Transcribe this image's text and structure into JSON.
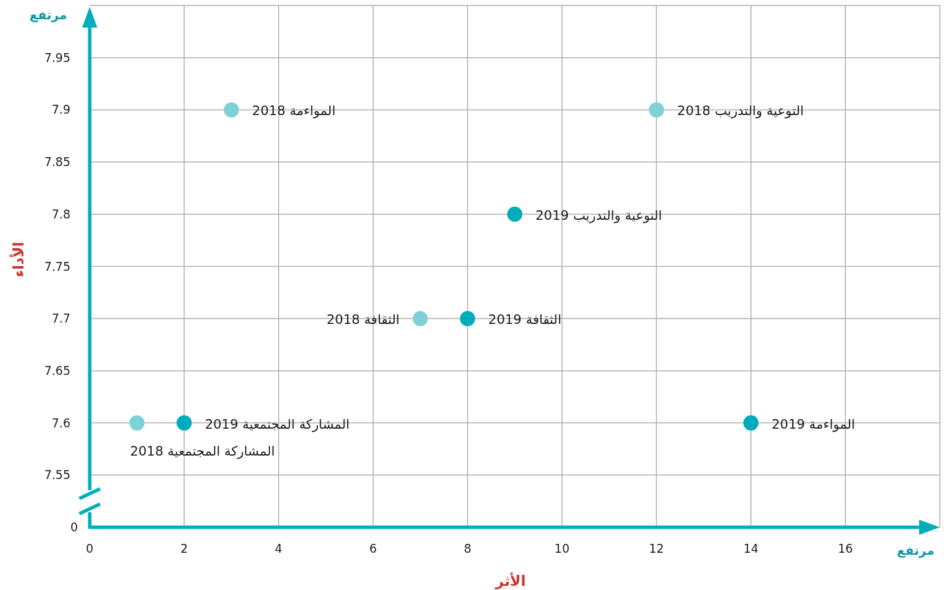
{
  "chart_data": {
    "type": "scatter",
    "xlabel": "الأثر",
    "ylabel": "الأداء",
    "xlim": [
      0,
      18
    ],
    "xticks": [
      0,
      2,
      4,
      6,
      8,
      10,
      12,
      14,
      16,
      {
        "value": 18,
        "label": null
      }
    ],
    "ylim": [
      7.5,
      8.0
    ],
    "yticks": [
      7.55,
      7.6,
      7.65,
      7.7,
      7.75,
      7.8,
      7.85,
      7.9,
      7.95,
      {
        "value": 8.0,
        "label": null
      }
    ],
    "grid": true,
    "marker": "circle",
    "series": [
      {
        "color": "#7fd1d9",
        "x": [
          1,
          3,
          7,
          12
        ],
        "values": [
          7.6,
          7.9,
          7.7,
          7.9
        ]
      },
      {
        "color": "#00abbb",
        "x": [
          2,
          8,
          9,
          14
        ],
        "values": [
          7.6,
          7.7,
          7.8,
          7.6
        ]
      }
    ],
    "annotations": [
      "مرتفع",
      "مرتفع",
      "0",
      {
        "text": "المشاركة المجتمعية 2018",
        "x": 1,
        "y": 7.6
      },
      {
        "text": "المواءمة 2018",
        "x": 3,
        "y": 7.9
      },
      {
        "text": "الثقافة 2018",
        "x": 7,
        "y": 7.7
      },
      {
        "text": "التوعية والتدريب 2018",
        "x": 12,
        "y": 7.9
      },
      {
        "text": "المشاركة المجتمعية 2019",
        "x": 2,
        "y": 7.6
      },
      {
        "text": "الثقافة 2019",
        "x": 8,
        "y": 7.7
      },
      {
        "text": "التوعية والتدريب 2019",
        "x": 9,
        "y": 7.8
      },
      {
        "text": "المواءمة 2019",
        "x": 14,
        "y": 7.6
      }
    ]
  }
}
